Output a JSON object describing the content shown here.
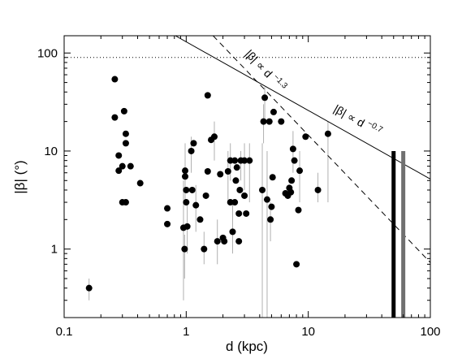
{
  "chart_data": {
    "type": "scatter",
    "title": "",
    "xlabel": "d (kpc)",
    "ylabel": "|β| (°)",
    "xscale": "log",
    "yscale": "log",
    "xlim": [
      0.1,
      100
    ],
    "ylim": [
      0.2,
      150
    ],
    "grid": false,
    "colors": {
      "points": "#000000",
      "error_bars": "#b0b0b0",
      "black_bar": "#000000",
      "gray_bar": "#707070"
    },
    "x_ticks": [
      {
        "value": 0.1,
        "label": "0.1"
      },
      {
        "value": 1,
        "label": "1"
      },
      {
        "value": 10,
        "label": "10"
      },
      {
        "value": 100,
        "label": "100"
      }
    ],
    "y_ticks": [
      {
        "value": 1,
        "label": "1"
      },
      {
        "value": 10,
        "label": "10"
      },
      {
        "value": 100,
        "label": "100"
      }
    ],
    "reference_line": {
      "y": 90,
      "style": "dotted"
    },
    "fit_lines": [
      {
        "label_base": "|β| ∝ d",
        "label_exp": "−1.3",
        "exponent": -1.3,
        "amplitude": 290,
        "style": "dashed"
      },
      {
        "label_base": "|β| ∝ d",
        "label_exp": "−0.7",
        "exponent": -0.7,
        "amplitude": 130,
        "style": "solid"
      }
    ],
    "vertical_bars": [
      {
        "x": 50,
        "y": 10,
        "color": "black"
      },
      {
        "x": 60,
        "y": 10,
        "color": "gray"
      }
    ],
    "points": [
      {
        "x": 0.16,
        "y": 0.4,
        "ylo": 0.3,
        "yhi": 0.5
      },
      {
        "x": 0.26,
        "y": 54
      },
      {
        "x": 0.26,
        "y": 22
      },
      {
        "x": 0.28,
        "y": 9
      },
      {
        "x": 0.28,
        "y": 6.3
      },
      {
        "x": 0.3,
        "y": 7
      },
      {
        "x": 0.3,
        "y": 3
      },
      {
        "x": 0.31,
        "y": 25.5
      },
      {
        "x": 0.32,
        "y": 15
      },
      {
        "x": 0.32,
        "y": 12
      },
      {
        "x": 0.32,
        "y": 3
      },
      {
        "x": 0.35,
        "y": 7
      },
      {
        "x": 0.42,
        "y": 4.7
      },
      {
        "x": 0.7,
        "y": 2.6
      },
      {
        "x": 0.7,
        "y": 1.8
      },
      {
        "x": 0.95,
        "y": 1.65,
        "ylo": 0.3,
        "yhi": 5
      },
      {
        "x": 0.97,
        "y": 1,
        "ylo": 0.5,
        "yhi": 1.4
      },
      {
        "x": 0.98,
        "y": 6.3,
        "ylo": 3,
        "yhi": 12
      },
      {
        "x": 0.98,
        "y": 5.5
      },
      {
        "x": 1.0,
        "y": 4
      },
      {
        "x": 1.0,
        "y": 3
      },
      {
        "x": 1.02,
        "y": 1.7,
        "ylo": 0.9,
        "yhi": 3
      },
      {
        "x": 1.1,
        "y": 10,
        "ylo": 6,
        "yhi": 14
      },
      {
        "x": 1.12,
        "y": 4
      },
      {
        "x": 1.15,
        "y": 12
      },
      {
        "x": 1.2,
        "y": 2.8,
        "ylo": 1.5,
        "yhi": 4.5
      },
      {
        "x": 1.3,
        "y": 2
      },
      {
        "x": 1.4,
        "y": 1,
        "ylo": 0.7,
        "yhi": 1.5
      },
      {
        "x": 1.45,
        "y": 3.5
      },
      {
        "x": 1.5,
        "y": 6.2
      },
      {
        "x": 1.5,
        "y": 37
      },
      {
        "x": 1.6,
        "y": 13
      },
      {
        "x": 1.7,
        "y": 14,
        "ylo": 8,
        "yhi": 20
      },
      {
        "x": 1.8,
        "y": 1.2,
        "ylo": 0.7,
        "yhi": 2
      },
      {
        "x": 1.9,
        "y": 5.8
      },
      {
        "x": 2.0,
        "y": 1.3
      },
      {
        "x": 2.05,
        "y": 1.2
      },
      {
        "x": 2.2,
        "y": 6.2,
        "ylo": 3,
        "yhi": 10
      },
      {
        "x": 2.3,
        "y": 8,
        "ylo": 5,
        "yhi": 12
      },
      {
        "x": 2.3,
        "y": 3
      },
      {
        "x": 2.4,
        "y": 1.5,
        "ylo": 0.9,
        "yhi": 3
      },
      {
        "x": 2.5,
        "y": 8
      },
      {
        "x": 2.5,
        "y": 3
      },
      {
        "x": 2.55,
        "y": 5
      },
      {
        "x": 2.6,
        "y": 6.8
      },
      {
        "x": 2.7,
        "y": 2.3
      },
      {
        "x": 2.7,
        "y": 1.2
      },
      {
        "x": 2.75,
        "y": 4
      },
      {
        "x": 2.8,
        "y": 8,
        "ylo": 5,
        "yhi": 10
      },
      {
        "x": 3.0,
        "y": 3.5
      },
      {
        "x": 3.0,
        "y": 8,
        "ylo": 4,
        "yhi": 12
      },
      {
        "x": 3.1,
        "y": 2.3
      },
      {
        "x": 3.3,
        "y": 8,
        "ylo": 3,
        "yhi": 12
      },
      {
        "x": 4.2,
        "y": 4,
        "ylo": 0.15,
        "yhi": 12
      },
      {
        "x": 4.3,
        "y": 20,
        "ylo": 12,
        "yhi": 30
      },
      {
        "x": 4.4,
        "y": 35,
        "ylo": 20,
        "yhi": 45
      },
      {
        "x": 4.6,
        "y": 3.2,
        "ylo": 0.15,
        "yhi": 10
      },
      {
        "x": 4.8,
        "y": 20
      },
      {
        "x": 4.9,
        "y": 2,
        "ylo": 1.2,
        "yhi": 3
      },
      {
        "x": 5.0,
        "y": 2.7
      },
      {
        "x": 5.1,
        "y": 5.4
      },
      {
        "x": 5.2,
        "y": 25
      },
      {
        "x": 6.0,
        "y": 20
      },
      {
        "x": 6.5,
        "y": 3.7
      },
      {
        "x": 6.8,
        "y": 3.5
      },
      {
        "x": 7.0,
        "y": 4.2
      },
      {
        "x": 7.2,
        "y": 3.8
      },
      {
        "x": 7.3,
        "y": 5
      },
      {
        "x": 7.5,
        "y": 10.5,
        "ylo": 6,
        "yhi": 16
      },
      {
        "x": 7.7,
        "y": 8
      },
      {
        "x": 8.0,
        "y": 0.7
      },
      {
        "x": 8.3,
        "y": 2.5
      },
      {
        "x": 8.5,
        "y": 6.3,
        "ylo": 3,
        "yhi": 10
      },
      {
        "x": 9.5,
        "y": 14
      },
      {
        "x": 12.0,
        "y": 4,
        "ylo": 3,
        "yhi": 6
      },
      {
        "x": 14.5,
        "y": 15,
        "ylo": 3,
        "yhi": 20
      }
    ]
  }
}
